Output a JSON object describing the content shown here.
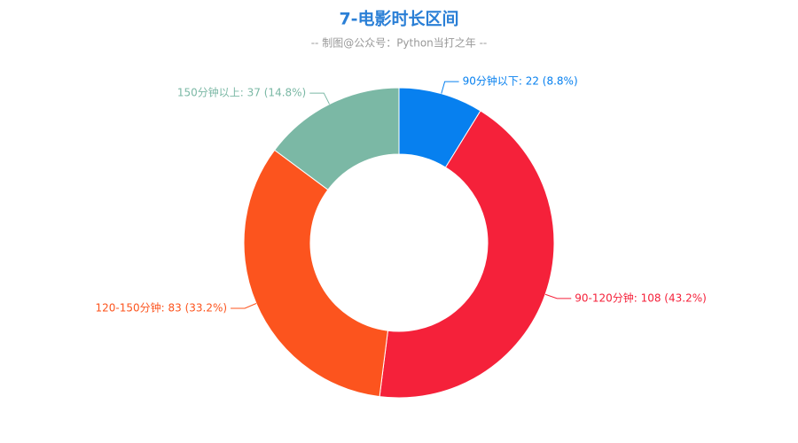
{
  "chart_data": {
    "type": "pie",
    "title": "7-电影时长区间",
    "subtitle": "-- 制图@公众号：Python当打之年 --",
    "values": [
      22,
      108,
      83,
      37
    ],
    "value_labels": [
      "90分钟以下: 22 (8.8%)",
      "90-120分钟: 108 (43.2%)",
      "120-150分钟: 83 (33.2%)",
      "150分钟以上: 37 (14.8%)"
    ],
    "colors": [
      "#0780ef",
      "#f5213a",
      "#fc541e",
      "#7bb8a5"
    ]
  }
}
